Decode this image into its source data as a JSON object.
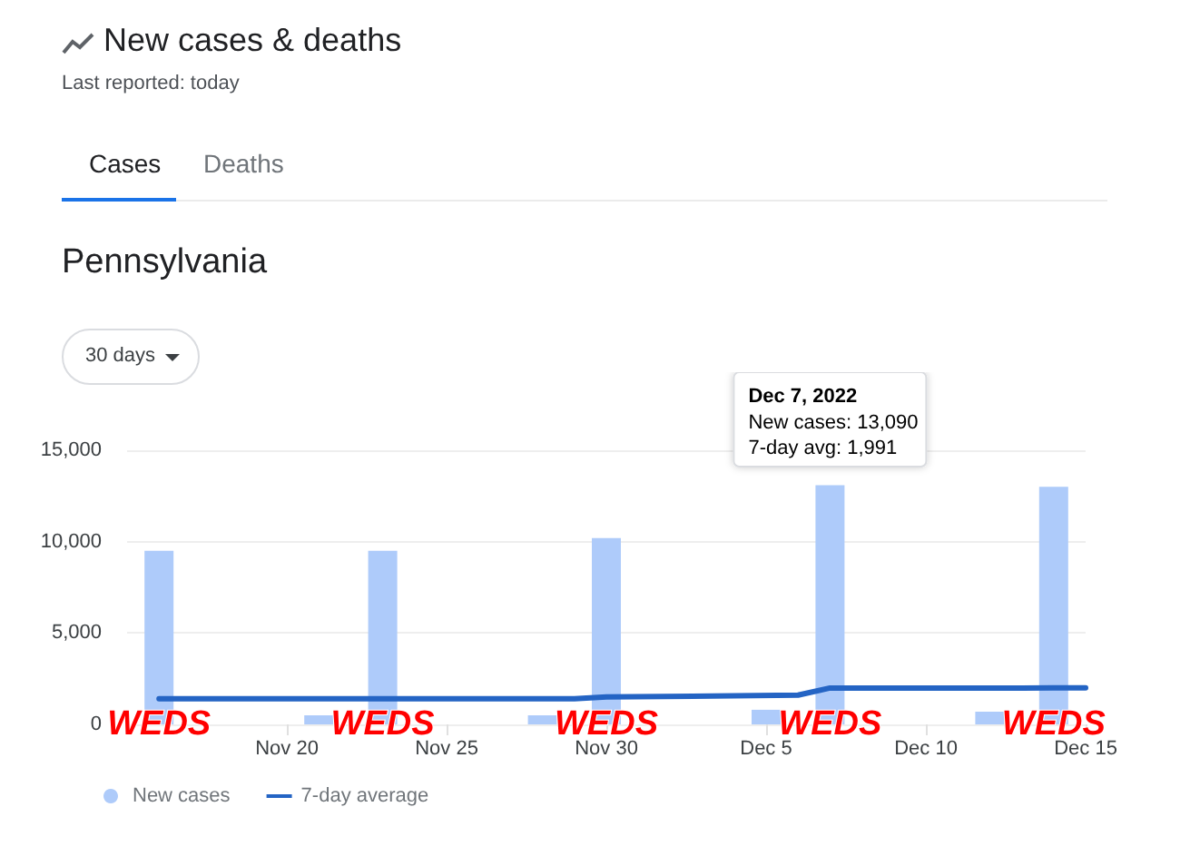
{
  "chart_data": {
    "type": "bar",
    "title": "New cases & deaths",
    "subtitle": "Last reported: today",
    "annotations": [
      "Cases",
      "Deaths",
      "Pennsylvania",
      "30 days",
      {
        "text": "Dec 7, 2022\nNew cases: 13,090\n7-day avg: 1,991",
        "x": "2022-12-07",
        "y": 13090
      },
      {
        "text": "WEDS",
        "x": "2022-11-16",
        "y": 0
      },
      {
        "text": "WEDS",
        "x": "2022-11-23",
        "y": 0
      },
      {
        "text": "WEDS",
        "x": "2022-11-30",
        "y": 0
      },
      {
        "text": "WEDS",
        "x": "2022-12-07",
        "y": 0
      },
      {
        "text": "WEDS",
        "x": "2022-12-14",
        "y": 0
      }
    ],
    "xlim": [
      "2022-11-15",
      "2022-12-15"
    ],
    "xticks": [
      {
        "value": "2022-11-20",
        "label": "Nov 20"
      },
      {
        "value": "2022-11-25",
        "label": "Nov 25"
      },
      {
        "value": "2022-11-30",
        "label": "Nov 30"
      },
      {
        "value": "2022-12-05",
        "label": "Dec 5"
      },
      {
        "value": "2022-12-10",
        "label": "Dec 10"
      },
      {
        "value": "2022-12-15",
        "label": "Dec 15"
      }
    ],
    "ylim": [
      0,
      15000
    ],
    "yticks": [
      {
        "value": 0,
        "label": "0"
      },
      {
        "value": 5000,
        "label": "5,000"
      },
      {
        "value": 10000,
        "label": "10,000"
      },
      {
        "value": 15000,
        "label": "15,000"
      }
    ],
    "grid": "y",
    "legend": "bottom left",
    "series": [
      {
        "name": "New cases",
        "type": "bar",
        "color": "#aecbfa",
        "x": [
          "2022-11-16",
          "2022-11-21",
          "2022-11-23",
          "2022-11-28",
          "2022-11-30",
          "2022-12-05",
          "2022-12-07",
          "2022-12-12",
          "2022-12-14"
        ],
        "values": [
          9500,
          500,
          9500,
          500,
          10200,
          800,
          13090,
          700,
          13000
        ]
      },
      {
        "name": "7-day average",
        "type": "line",
        "color": "#2464c4",
        "marker": "none",
        "x": [
          "2022-11-16",
          "2022-11-29",
          "2022-11-30",
          "2022-12-06",
          "2022-12-07",
          "2022-12-13",
          "2022-12-14",
          "2022-12-15"
        ],
        "values": [
          1400,
          1400,
          1500,
          1600,
          1991,
          1991,
          2000,
          2000
        ]
      }
    ]
  }
}
